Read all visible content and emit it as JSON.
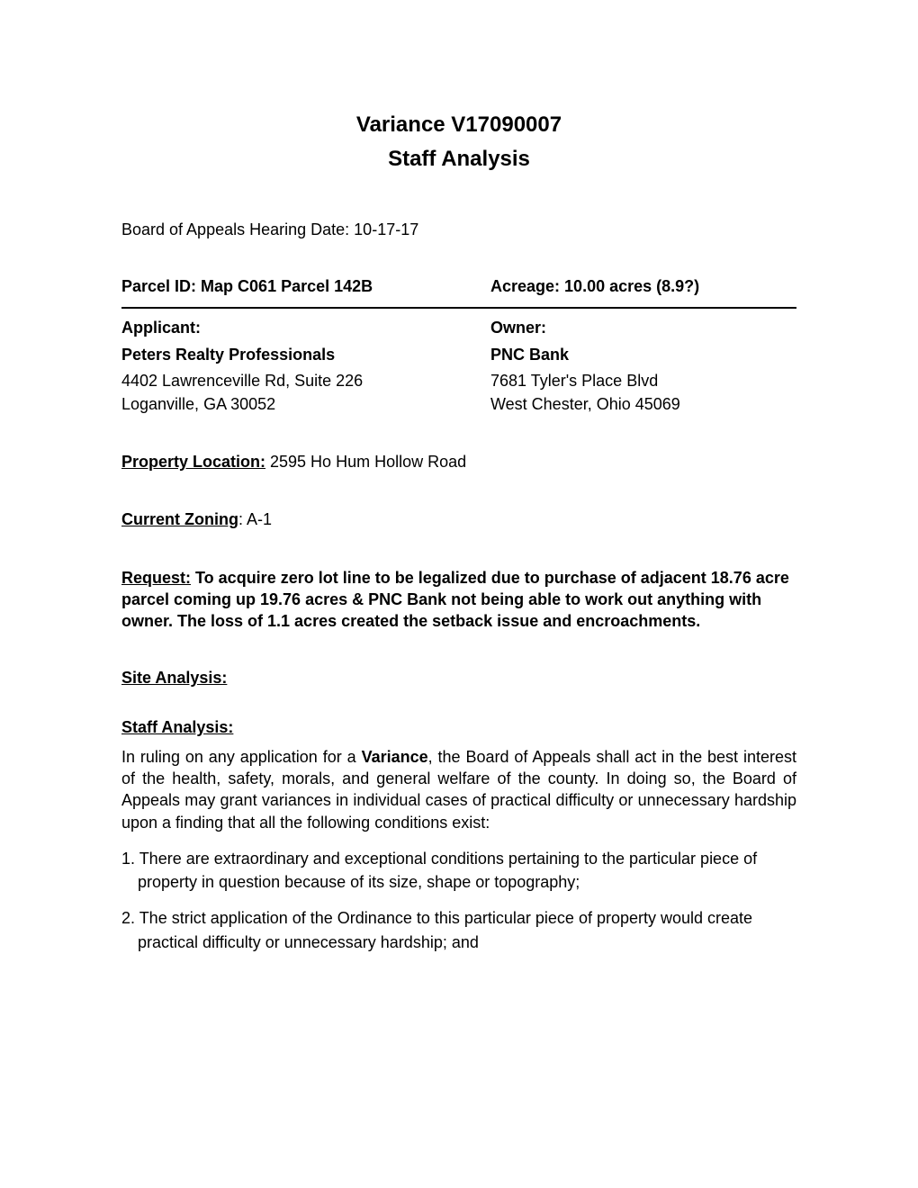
{
  "title": {
    "line1": "Variance V17090007",
    "line2": "Staff Analysis"
  },
  "hearing": {
    "label": "Board of Appeals Hearing Date: ",
    "date": "10-17-17"
  },
  "parcel": {
    "id_label": "Parcel ID: ",
    "id_value": "Map C061 Parcel 142B",
    "acreage_label": "Acreage: ",
    "acreage_value": "10.00 acres  (8.9?)"
  },
  "applicant": {
    "heading": "Applicant:",
    "name": "Peters Realty Professionals",
    "addr1": "4402 Lawrenceville Rd, Suite 226",
    "addr2": "Loganville, GA  30052"
  },
  "owner": {
    "heading": "Owner:",
    "name": "PNC Bank",
    "addr1": "7681 Tyler's Place Blvd",
    "addr2": "West Chester, Ohio 45069"
  },
  "property_location": {
    "label": "Property Location:",
    "value": " 2595 Ho Hum Hollow Road"
  },
  "zoning": {
    "label": "Current Zoning",
    "value": ": A-1"
  },
  "request": {
    "label": "Request:",
    "text": " To acquire zero lot line to be legalized due to purchase of adjacent 18.76 acre parcel coming up 19.76 acres & PNC Bank not being able to work out anything with owner.   The loss of 1.1 acres created the setback issue and encroachments."
  },
  "site_analysis": {
    "label": "Site Analysis:"
  },
  "staff_analysis": {
    "label": "Staff Analysis: ",
    "intro_pre": "In ruling on any application for a ",
    "intro_bold": "Variance",
    "intro_post": ", the Board of Appeals shall act in the best interest of the health, safety, morals, and general welfare of the county. In doing so, the Board of Appeals may grant variances in individual cases of practical difficulty or unnecessary hardship upon a finding that all the following conditions exist:",
    "item1_main": "1. There are extraordinary and exceptional conditions pertaining to the particular piece of",
    "item1_sub": "property in question because of its size, shape or topography;",
    "item2_main": "2. The strict application of the Ordinance to this particular piece of property would create",
    "item2_sub": "practical difficulty or unnecessary hardship; and"
  }
}
